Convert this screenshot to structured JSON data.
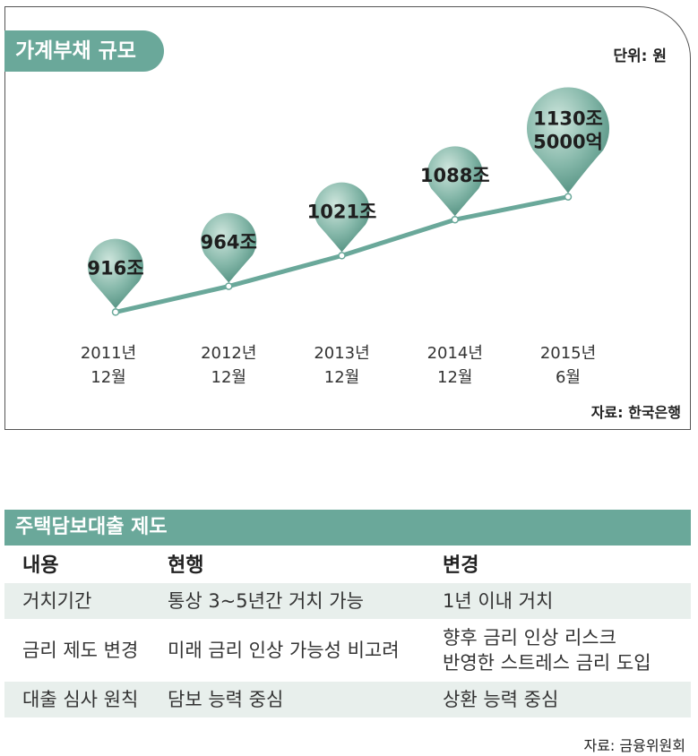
{
  "chart": {
    "title": "가계부채 규모",
    "unit": "단위: 원",
    "source": "자료: 한국은행"
  },
  "chart_data": {
    "type": "line",
    "title": "가계부채 규모",
    "unit": "원",
    "categories": [
      [
        "2011년",
        "12월"
      ],
      [
        "2012년",
        "12월"
      ],
      [
        "2013년",
        "12월"
      ],
      [
        "2014년",
        "12월"
      ],
      [
        "2015년",
        "6월"
      ]
    ],
    "values": [
      916,
      964,
      1021,
      1088,
      1130.5
    ],
    "value_unit": "조",
    "data_labels": [
      [
        "916조"
      ],
      [
        "964조"
      ],
      [
        "1021조"
      ],
      [
        "1088조"
      ],
      [
        "1130조",
        "5000억"
      ]
    ],
    "ylim": [
      880,
      1150
    ],
    "grid": false,
    "legend": "none",
    "colors": {
      "line": "#6aa89a",
      "marker_dark": "#4e8d7d",
      "marker_light": "#cfe6dd",
      "label": "#1e1e1e"
    }
  },
  "table": {
    "title": "주택담보대출 제도",
    "headers": [
      "내용",
      "현행",
      "변경"
    ],
    "rows": [
      {
        "item": "거치기간",
        "current": "통상 3~5년간 거치 가능",
        "change": [
          "1년 이내 거치"
        ]
      },
      {
        "item": "금리 제도 변경",
        "current": "미래 금리 인상 가능성 비고려",
        "change": [
          "향후 금리 인상 리스크",
          "반영한 스트레스 금리 도입"
        ]
      },
      {
        "item": "대출 심사 원칙",
        "current": "담보 능력 중심",
        "change": [
          "상환 능력 중심"
        ]
      }
    ],
    "source": "자료: 금융위원회"
  },
  "colors": {
    "accent": "#6aa89a",
    "row_tint": "#e8efec",
    "border": "#555555"
  }
}
